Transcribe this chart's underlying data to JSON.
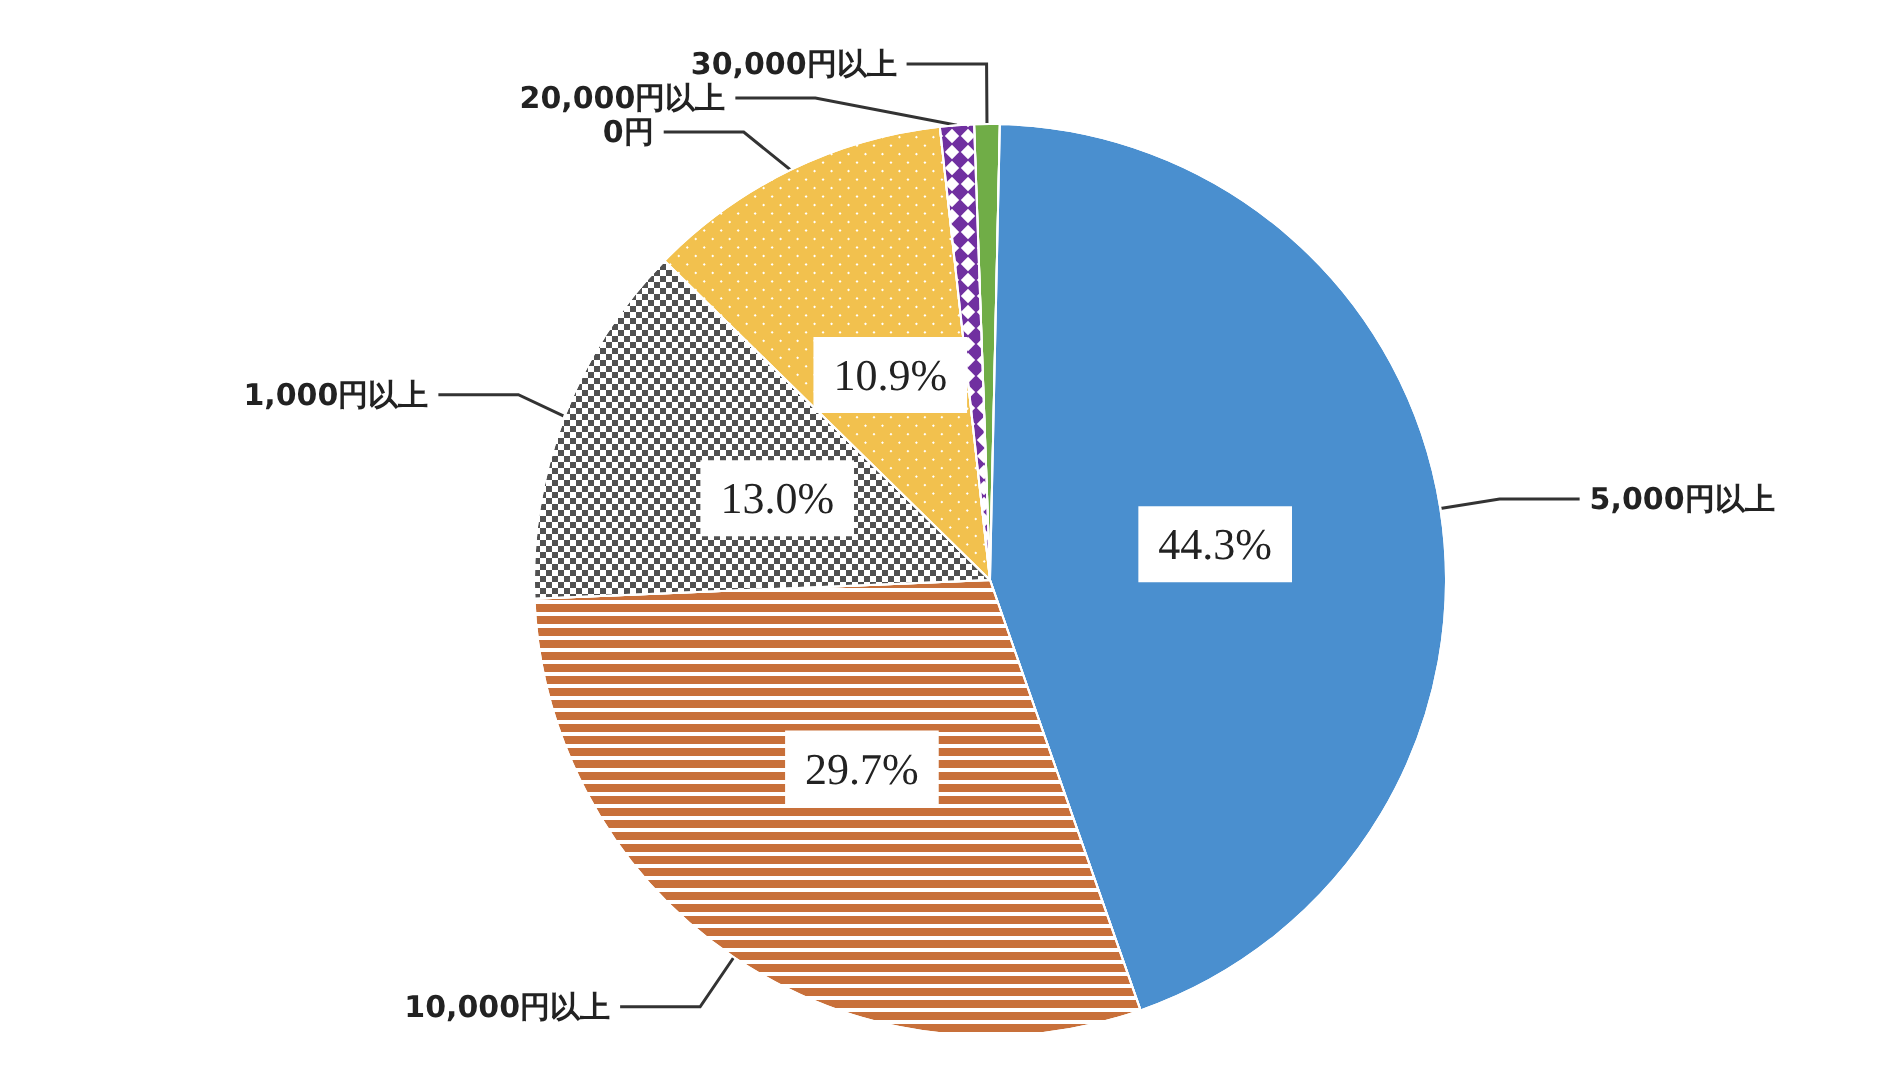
{
  "chart_data": {
    "type": "pie",
    "categories": [
      "30,000円以上",
      "5,000円以上",
      "10,000円以上",
      "1,000円以上",
      "0円",
      "20,000円以上"
    ],
    "values": [
      0.9,
      44.3,
      29.7,
      13.0,
      10.9,
      1.2
    ],
    "colors": [
      "#70ad47",
      "#4a8fcf",
      "#c8703a",
      "#505050",
      "#f2c14e",
      "#7030a0"
    ],
    "value_labels": [
      null,
      "44.3%",
      "29.7%",
      "13.0%",
      "10.9%",
      null
    ],
    "legend": false
  }
}
